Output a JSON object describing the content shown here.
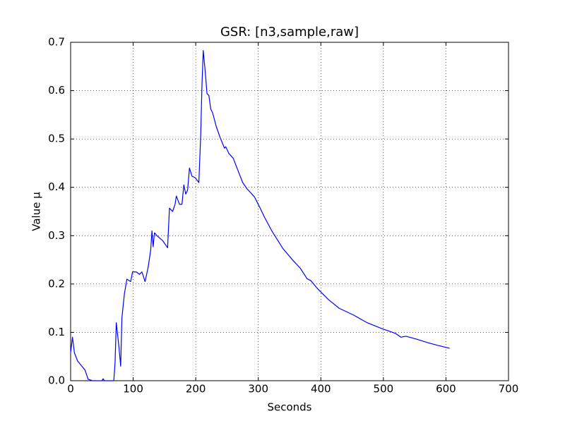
{
  "chart_data": {
    "type": "line",
    "title": "GSR: [n3,sample,raw]",
    "x_label": "Seconds",
    "y_label": "Value µ",
    "xlim": [
      0,
      700
    ],
    "ylim": [
      0,
      0.7
    ],
    "xticks": [
      0,
      100,
      200,
      300,
      400,
      500,
      600,
      700
    ],
    "yticks": [
      {
        "value": 0,
        "label": "0.0"
      },
      0.1,
      0.2,
      0.3,
      0.4,
      0.5,
      0.6,
      0.7
    ],
    "grid": true,
    "x": [
      0,
      3,
      6,
      11,
      23,
      28,
      35,
      50,
      52,
      54,
      69,
      71,
      73,
      77,
      80,
      82,
      86,
      90,
      96,
      99,
      105,
      110,
      114,
      119,
      124,
      128,
      130,
      132,
      134,
      138,
      147,
      155,
      158,
      163,
      167,
      169,
      174,
      178,
      181,
      184,
      187,
      190,
      194,
      199,
      205,
      208,
      210,
      212,
      215,
      218,
      221,
      224,
      227,
      233,
      239,
      246,
      248,
      253,
      260,
      266,
      275,
      282,
      294,
      303,
      310,
      322,
      339,
      356,
      367,
      378,
      384,
      395,
      412,
      429,
      452,
      474,
      497,
      519,
      528,
      536,
      553,
      570,
      587,
      606
    ],
    "series": [
      {
        "name": "GSR",
        "color": "#0000ff",
        "values": [
          0.058,
          0.09,
          0.058,
          0.041,
          0.022,
          0.003,
          0,
          0,
          0.004,
          0,
          0,
          0.036,
          0.12,
          0.073,
          0.03,
          0.13,
          0.18,
          0.21,
          0.205,
          0.225,
          0.225,
          0.22,
          0.225,
          0.205,
          0.235,
          0.27,
          0.31,
          0.277,
          0.306,
          0.3,
          0.29,
          0.275,
          0.357,
          0.35,
          0.365,
          0.382,
          0.365,
          0.365,
          0.405,
          0.386,
          0.394,
          0.44,
          0.423,
          0.42,
          0.41,
          0.51,
          0.612,
          0.683,
          0.642,
          0.594,
          0.59,
          0.562,
          0.554,
          0.525,
          0.503,
          0.481,
          0.484,
          0.47,
          0.46,
          0.44,
          0.41,
          0.397,
          0.38,
          0.357,
          0.338,
          0.309,
          0.274,
          0.248,
          0.233,
          0.211,
          0.207,
          0.19,
          0.168,
          0.15,
          0.136,
          0.12,
          0.108,
          0.098,
          0.09,
          0.092,
          0.086,
          0.079,
          0.073,
          0.067
        ]
      }
    ]
  }
}
